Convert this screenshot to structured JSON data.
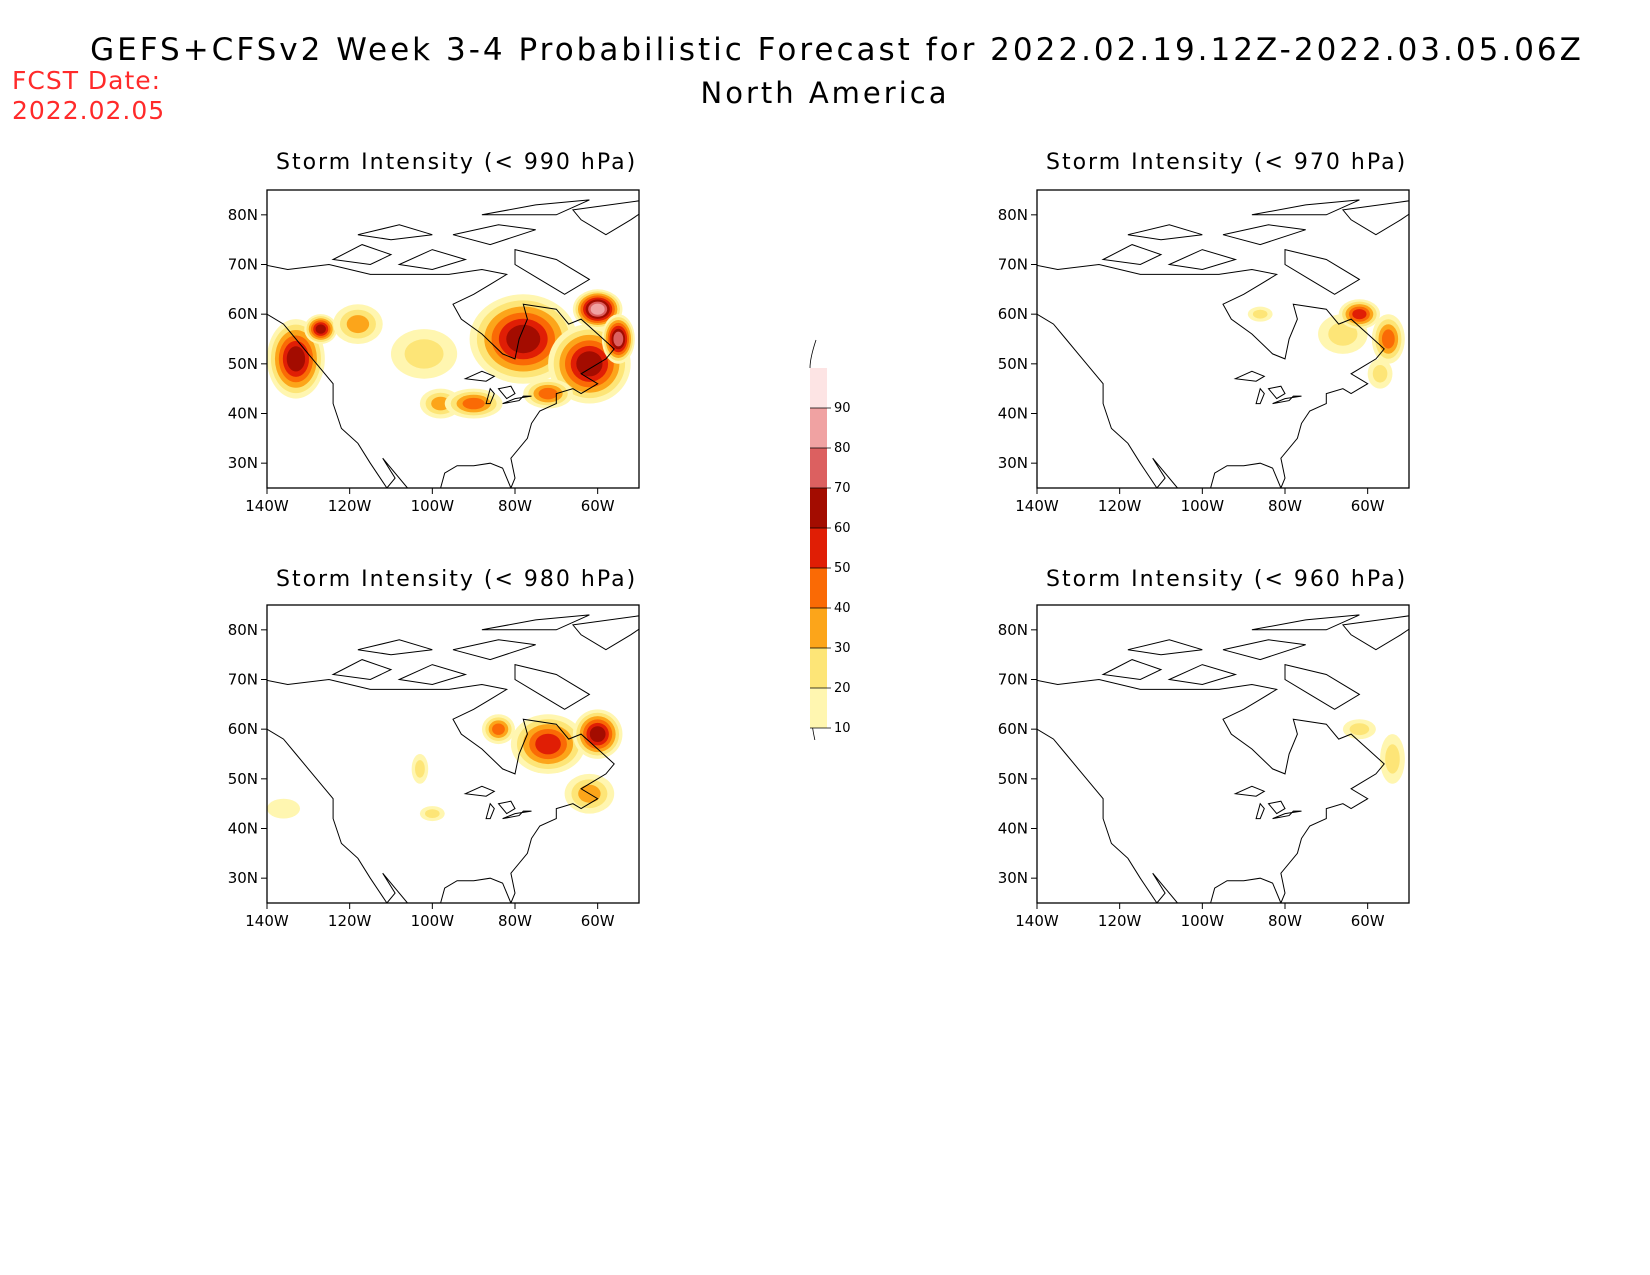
{
  "header": {
    "title": "GEFS+CFSv2 Week 3-4 Probabilistic Forecast for 2022.02.19.12Z-2022.03.05.06Z",
    "subtitle": "North America",
    "fcst_label": "FCST Date:",
    "fcst_date": "2022.02.05"
  },
  "colors": {
    "10": "#fff6b0",
    "20": "#fde577",
    "30": "#fca51a",
    "40": "#fa6a05",
    "50": "#e01e05",
    "60": "#a30c00",
    "70": "#dc6060",
    "80": "#f0a2a2",
    "90": "#fde4e4",
    "coast": "#000000",
    "fcst_text": "#ff2a2a"
  },
  "colorbar": {
    "levels": [
      "10",
      "20",
      "30",
      "40",
      "50",
      "60",
      "70",
      "80",
      "90"
    ]
  },
  "axes": {
    "lat_ticks": [
      "30N",
      "40N",
      "50N",
      "60N",
      "70N",
      "80N"
    ],
    "lon_ticks": [
      "140W",
      "120W",
      "100W",
      "80W",
      "60W"
    ]
  },
  "panels": [
    {
      "id": "p990",
      "title": "Storm Intensity (< 990 hPa)",
      "blobs": [
        {
          "lon": -133,
          "lat": 51,
          "rx": 7,
          "ry": 8,
          "v": 60
        },
        {
          "lon": -127,
          "lat": 57,
          "rx": 4,
          "ry": 3,
          "v": 60
        },
        {
          "lon": -118,
          "lat": 58,
          "rx": 6,
          "ry": 4,
          "v": 30
        },
        {
          "lon": -102,
          "lat": 52,
          "rx": 8,
          "ry": 5,
          "v": 20
        },
        {
          "lon": -98,
          "lat": 42,
          "rx": 5,
          "ry": 3,
          "v": 30
        },
        {
          "lon": -90,
          "lat": 42,
          "rx": 7,
          "ry": 3,
          "v": 40
        },
        {
          "lon": -78,
          "lat": 55,
          "rx": 13,
          "ry": 9,
          "v": 60
        },
        {
          "lon": -62,
          "lat": 50,
          "rx": 10,
          "ry": 8,
          "v": 60
        },
        {
          "lon": -60,
          "lat": 61,
          "rx": 6,
          "ry": 4,
          "v": 80
        },
        {
          "lon": -55,
          "lat": 55,
          "rx": 4,
          "ry": 5,
          "v": 70
        },
        {
          "lon": -72,
          "lat": 44,
          "rx": 6,
          "ry": 3,
          "v": 40
        }
      ]
    },
    {
      "id": "p970",
      "title": "Storm Intensity (< 970 hPa)",
      "blobs": [
        {
          "lon": -86,
          "lat": 60,
          "rx": 3,
          "ry": 1.5,
          "v": 20
        },
        {
          "lon": -66,
          "lat": 56,
          "rx": 6,
          "ry": 4,
          "v": 20
        },
        {
          "lon": -62,
          "lat": 60,
          "rx": 5,
          "ry": 3,
          "v": 50
        },
        {
          "lon": -55,
          "lat": 55,
          "rx": 4,
          "ry": 5,
          "v": 40
        },
        {
          "lon": -57,
          "lat": 48,
          "rx": 3,
          "ry": 3,
          "v": 20
        }
      ]
    },
    {
      "id": "p980",
      "title": "Storm Intensity (< 980 hPa)",
      "blobs": [
        {
          "lon": -136,
          "lat": 44,
          "rx": 4,
          "ry": 2,
          "v": 10
        },
        {
          "lon": -103,
          "lat": 52,
          "rx": 2,
          "ry": 3,
          "v": 20
        },
        {
          "lon": -100,
          "lat": 43,
          "rx": 3,
          "ry": 1.5,
          "v": 20
        },
        {
          "lon": -84,
          "lat": 60,
          "rx": 4,
          "ry": 3,
          "v": 40
        },
        {
          "lon": -72,
          "lat": 57,
          "rx": 9,
          "ry": 6,
          "v": 50
        },
        {
          "lon": -60,
          "lat": 59,
          "rx": 6,
          "ry": 5,
          "v": 60
        },
        {
          "lon": -62,
          "lat": 47,
          "rx": 6,
          "ry": 4,
          "v": 30
        }
      ]
    },
    {
      "id": "p960",
      "title": "Storm Intensity (< 960 hPa)",
      "blobs": [
        {
          "lon": -62,
          "lat": 60,
          "rx": 4,
          "ry": 2,
          "v": 20
        },
        {
          "lon": -54,
          "lat": 54,
          "rx": 3,
          "ry": 5,
          "v": 20
        }
      ]
    }
  ]
}
